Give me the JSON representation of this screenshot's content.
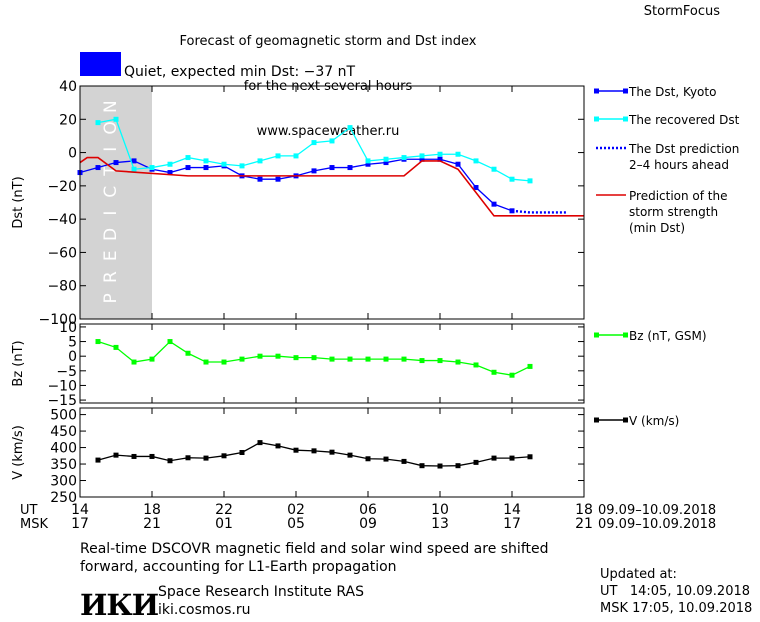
{
  "header": {
    "title_lines": [
      "Forecast of geomagnetic storm and Dst index",
      "for the next several hours",
      "www.spaceweather.ru"
    ],
    "brand": "StormFocus"
  },
  "status": {
    "text": "Quiet, expected min Dst: −37 nT",
    "color": "#0000ff"
  },
  "colors": {
    "dst_kyoto": "#0000ff",
    "dst_recovered": "#00ffff",
    "dst_prediction": "#0000ff",
    "storm_strength": "#dd0000",
    "bz": "#00ff00",
    "v": "#000000",
    "prediction_band": "#d3d3d3"
  },
  "chart_data": [
    {
      "type": "line",
      "ylabel": "Dst (nT)",
      "ylim": [
        -100,
        40
      ],
      "yticks": [
        40,
        20,
        0,
        -20,
        -40,
        -60,
        -80,
        -100
      ],
      "xlim": [
        14,
        42
      ],
      "prediction_band": {
        "label": "PREDICTION",
        "x_range": [
          14,
          18
        ]
      },
      "series": [
        {
          "name": "The Dst, Kyoto",
          "x": [
            14,
            15,
            16,
            17,
            18,
            19,
            20,
            21,
            22,
            23,
            24,
            25,
            26,
            27,
            28,
            29,
            30,
            31,
            32,
            33,
            34,
            35,
            36,
            37,
            38
          ],
          "values": [
            -12,
            -9,
            -6,
            -5,
            -10,
            -12,
            -9,
            -9,
            -8,
            -14,
            -16,
            -16,
            -14,
            -11,
            -9,
            -9,
            -7,
            -6,
            -4,
            -4,
            -4,
            -7,
            -21,
            -31,
            -35
          ]
        },
        {
          "name": "The recovered Dst",
          "x": [
            15,
            16,
            17,
            18,
            19,
            20,
            21,
            22,
            23,
            24,
            25,
            26,
            27,
            28,
            29,
            30,
            31,
            32,
            33,
            34,
            35,
            36,
            37,
            38,
            39
          ],
          "values": [
            18,
            20,
            -10,
            -9,
            -7,
            -3,
            -5,
            -7,
            -8,
            -5,
            -2,
            -2,
            6,
            7,
            15,
            -5,
            -4,
            -3,
            -2,
            -1,
            -1,
            -5,
            -10,
            -16,
            -17
          ]
        },
        {
          "name": "The Dst prediction\n2–4 hours ahead",
          "x": [
            38,
            39,
            40,
            41
          ],
          "values": [
            -35,
            -36,
            -36,
            -36
          ]
        },
        {
          "name": "Prediction of the\nstorm strength\n(min Dst)",
          "x": [
            14,
            14.4,
            15,
            16,
            20,
            25,
            30,
            32,
            33,
            34,
            35,
            37,
            38,
            42
          ],
          "values": [
            -6,
            -3,
            -3,
            -11,
            -14,
            -14,
            -14,
            -14,
            -5,
            -5,
            -10,
            -38,
            -38,
            -38
          ]
        }
      ]
    },
    {
      "type": "line",
      "ylabel": "Bz (nT)",
      "ylim": [
        -16,
        11
      ],
      "yticks": [
        10,
        5,
        0,
        -5,
        -10,
        -15
      ],
      "xlim": [
        14,
        42
      ],
      "series": [
        {
          "name": "Bz (nT, GSM)",
          "x": [
            15,
            16,
            17,
            18,
            19,
            20,
            21,
            22,
            23,
            24,
            25,
            26,
            27,
            28,
            29,
            30,
            31,
            32,
            33,
            34,
            35,
            36,
            37,
            38,
            39
          ],
          "values": [
            5,
            3,
            -2,
            -1,
            5,
            1,
            -2,
            -2,
            -1,
            0,
            0,
            -0.5,
            -0.5,
            -1,
            -1,
            -1,
            -1,
            -1,
            -1.5,
            -1.5,
            -2,
            -3,
            -5.5,
            -6.5,
            -3.5
          ]
        }
      ]
    },
    {
      "type": "line",
      "ylabel": "V (km/s)",
      "ylim": [
        250,
        520
      ],
      "yticks": [
        500,
        450,
        400,
        350,
        300,
        250
      ],
      "xlim": [
        14,
        42
      ],
      "series": [
        {
          "name": "V (km/s)",
          "x": [
            15,
            16,
            17,
            18,
            19,
            20,
            21,
            22,
            23,
            24,
            25,
            26,
            27,
            28,
            29,
            30,
            31,
            32,
            33,
            34,
            35,
            36,
            37,
            38,
            39
          ],
          "values": [
            362,
            377,
            373,
            373,
            360,
            369,
            368,
            375,
            385,
            415,
            405,
            392,
            390,
            386,
            377,
            366,
            365,
            358,
            345,
            344,
            345,
            355,
            368,
            368,
            372
          ]
        }
      ]
    }
  ],
  "time_axis": {
    "ut_label": "UT",
    "msk_label": "MSK",
    "ut_ticks": [
      "14",
      "18",
      "22",
      "02",
      "06",
      "10",
      "14",
      "18"
    ],
    "msk_ticks": [
      "17",
      "21",
      "01",
      "05",
      "09",
      "13",
      "17",
      "21"
    ],
    "tick_x": [
      14,
      18,
      22,
      26,
      30,
      34,
      38,
      42
    ],
    "date_range_ut": "09.09–10.09.2018",
    "date_range_msk": "09.09–10.09.2018"
  },
  "footer": {
    "note": "Real-time DSCOVR magnetic field and solar wind speed are shifted\nforward, accounting for L1-Earth propagation",
    "logo": "ИКИ",
    "org_name": "Space Research Institute RAS",
    "org_url": "iki.cosmos.ru",
    "updated": "Updated at:\nUT   14:05, 10.09.2018\nMSK 17:05, 10.09.2018"
  }
}
